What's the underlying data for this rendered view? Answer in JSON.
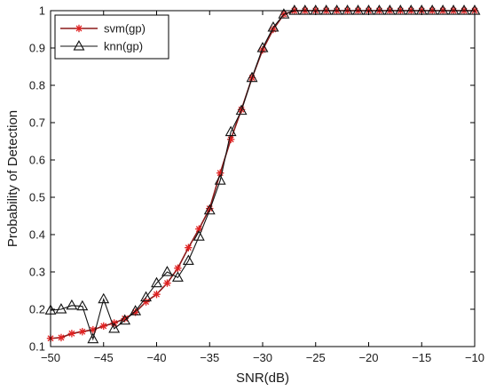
{
  "chart_data": {
    "type": "line",
    "xlabel": "SNR(dB)",
    "ylabel": "Probability of Detection",
    "xlim": [
      -50,
      -10
    ],
    "ylim": [
      0.1,
      1
    ],
    "xticks": [
      -50,
      -45,
      -40,
      -35,
      -30,
      -25,
      -20,
      -15,
      -10
    ],
    "yticks": [
      0.1,
      0.2,
      0.3,
      0.4,
      0.5,
      0.6,
      0.7,
      0.8,
      0.9,
      1
    ],
    "xtick_labels": [
      "−50",
      "−45",
      "−40",
      "−35",
      "−30",
      "−25",
      "−20",
      "−15",
      "−10"
    ],
    "ytick_labels": [
      "0.1",
      "0.2",
      "0.3",
      "0.4",
      "0.5",
      "0.6",
      "0.7",
      "0.8",
      "0.9",
      "1"
    ],
    "grid": false,
    "legend_position": "top-left",
    "x": [
      -50,
      -49,
      -48,
      -47,
      -46,
      -45,
      -44,
      -43,
      -42,
      -41,
      -40,
      -39,
      -38,
      -37,
      -36,
      -35,
      -34,
      -33,
      -32,
      -31,
      -30,
      -29,
      -28,
      -27,
      -26,
      -25,
      -24,
      -23,
      -22,
      -21,
      -20,
      -19,
      -18,
      -17,
      -16,
      -15,
      -14,
      -13,
      -12,
      -11,
      -10
    ],
    "series": [
      {
        "name": "svm(gp)",
        "marker": "asterisk",
        "line_color": "#8b1a1a",
        "marker_color": "#e02020",
        "values": [
          0.122,
          0.124,
          0.135,
          0.14,
          0.145,
          0.155,
          0.163,
          0.175,
          0.192,
          0.22,
          0.24,
          0.27,
          0.31,
          0.365,
          0.415,
          0.47,
          0.565,
          0.655,
          0.735,
          0.82,
          0.895,
          0.95,
          0.99,
          1,
          1,
          1,
          1,
          1,
          1,
          1,
          1,
          1,
          1,
          1,
          1,
          1,
          1,
          1,
          1,
          1,
          1
        ]
      },
      {
        "name": "knn(gp)",
        "marker": "triangle",
        "line_color": "#111111",
        "marker_color": "#111111",
        "values": [
          0.197,
          0.2,
          0.21,
          0.208,
          0.12,
          0.227,
          0.148,
          0.17,
          0.195,
          0.232,
          0.27,
          0.3,
          0.285,
          0.33,
          0.395,
          0.465,
          0.545,
          0.675,
          0.732,
          0.82,
          0.9,
          0.955,
          0.99,
          1,
          1,
          1,
          1,
          1,
          1,
          1,
          1,
          1,
          1,
          1,
          1,
          1,
          1,
          1,
          1,
          1,
          1
        ]
      }
    ]
  }
}
